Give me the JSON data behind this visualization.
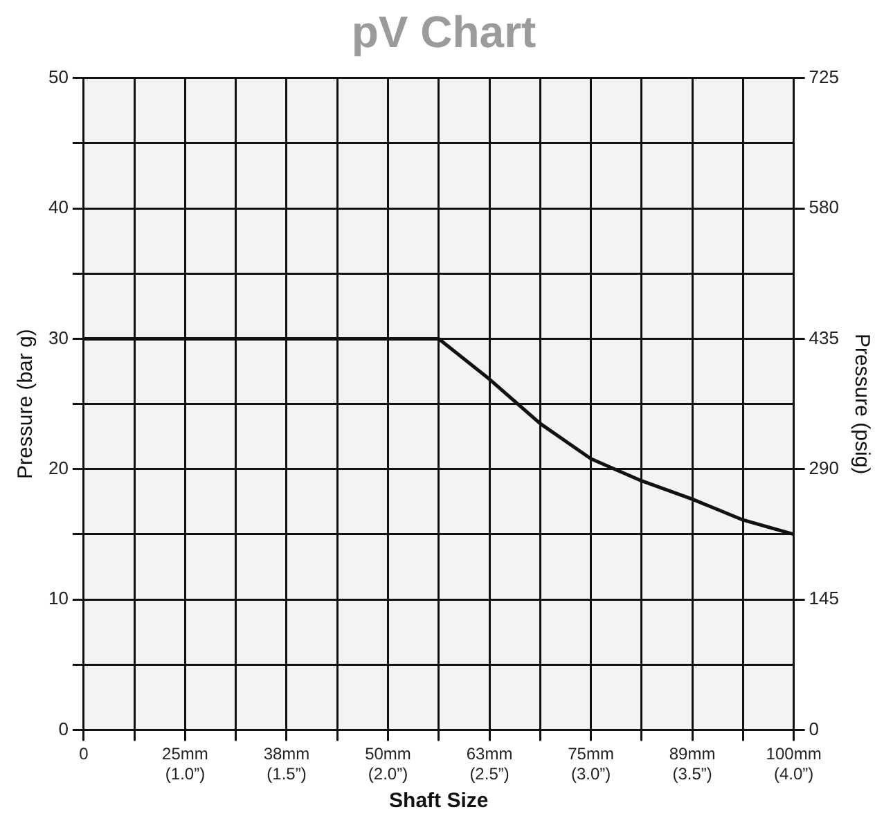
{
  "chart_data": {
    "type": "line",
    "title": "pV Chart",
    "xlabel": "Shaft Size",
    "ylabel": "Pressure (bar g)",
    "y2label": "Pressure (psig)",
    "series": [
      {
        "color": "#111111",
        "values": [
          30,
          30,
          30,
          30,
          30,
          30,
          30,
          30,
          26.9,
          23.5,
          20.8,
          19.1,
          17.7,
          16.1,
          15
        ]
      }
    ],
    "categories": [
      "0",
      null,
      "25mm\n(1.0”)",
      null,
      "38mm\n(1.5”)",
      null,
      "50mm\n(2.0”)",
      null,
      "63mm\n(2.5”)",
      null,
      "75mm\n(3.0”)",
      null,
      "89mm\n(3.5”)",
      null,
      "100mm\n(4.0”)"
    ],
    "ylim": [
      0,
      50
    ],
    "yticks": [
      0,
      {
        "value": 5,
        "label": null
      },
      10,
      {
        "value": 15,
        "label": null
      },
      20,
      {
        "value": 25,
        "label": null
      },
      30,
      {
        "value": 35,
        "label": null
      },
      40,
      {
        "value": 45,
        "label": null
      },
      50
    ],
    "y2lim": [
      0,
      725
    ],
    "y2ticks": [
      0,
      145,
      290,
      435,
      580,
      725
    ],
    "grid": true,
    "marker": "none",
    "line_style": "solid"
  }
}
